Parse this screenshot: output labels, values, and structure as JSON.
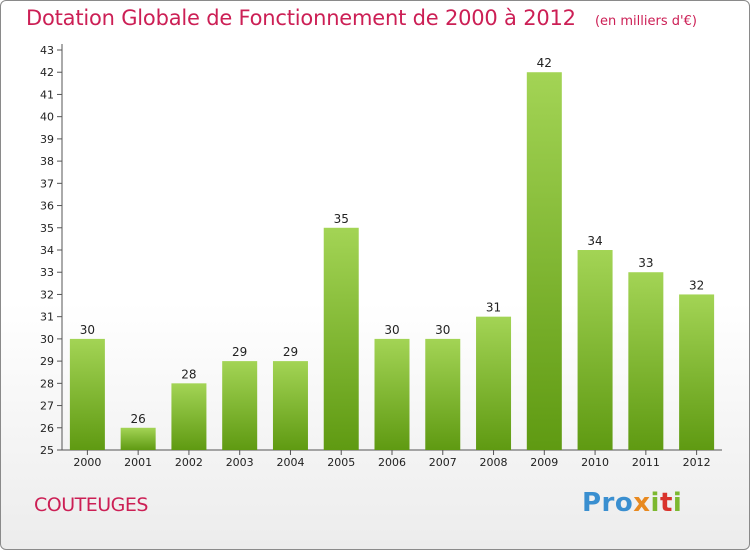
{
  "title": "Dotation Globale de Fonctionnement de 2000 à 2012",
  "unit_note": "(en milliers d'€)",
  "commune": "COUTEUGES",
  "logo": {
    "p1": "Pro",
    "p2": "x",
    "p3": "i",
    "p4": "t",
    "p5": "i"
  },
  "colors": {
    "title": "#cc1f55",
    "bar_top": "#a3d455",
    "bar_bottom": "#5f9a12",
    "axis": "#555555"
  },
  "chart_data": {
    "type": "bar",
    "title": "Dotation Globale de Fonctionnement de 2000 à 2012",
    "xlabel": "",
    "ylabel": "",
    "categories": [
      "2000",
      "2001",
      "2002",
      "2003",
      "2004",
      "2005",
      "2006",
      "2007",
      "2008",
      "2009",
      "2010",
      "2011",
      "2012"
    ],
    "values": [
      30,
      26,
      28,
      29,
      29,
      35,
      30,
      30,
      31,
      42,
      34,
      33,
      32
    ],
    "ylim": [
      25,
      43
    ],
    "yticks": [
      25,
      26,
      27,
      28,
      29,
      30,
      31,
      32,
      33,
      34,
      35,
      36,
      37,
      38,
      39,
      40,
      41,
      42,
      43
    ],
    "grid": false,
    "data_labels": true
  }
}
